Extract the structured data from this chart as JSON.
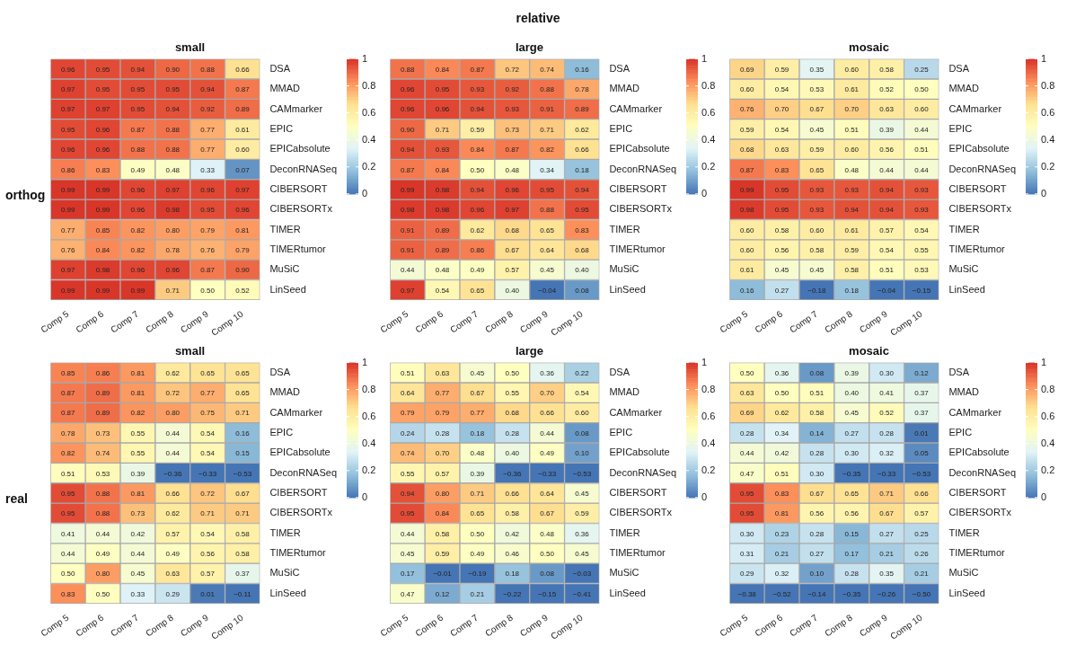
{
  "chart_data": [
    {
      "type": "heatmap",
      "title": "small",
      "annotations": [
        "relative",
        "orthog"
      ],
      "categories": [
        "Comp 5",
        "Comp 6",
        "Comp 7",
        "Comp 8",
        "Comp 9",
        "Comp 10"
      ],
      "y_categories": [
        "DSA",
        "MMAD",
        "CAMmarker",
        "EPIC",
        "EPICabsolute",
        "DeconRNASeq",
        "CIBERSORT",
        "CIBERSORTx",
        "TIMER",
        "TIMERtumor",
        "MuSiC",
        "LinSeed"
      ],
      "clim": [
        0,
        1
      ],
      "cticks": [
        0,
        0.2,
        0.4,
        0.6,
        0.8,
        1
      ],
      "cells": [
        [
          0.96,
          0.95,
          0.94,
          0.9,
          0.88,
          0.66
        ],
        [
          0.97,
          0.95,
          0.95,
          0.95,
          0.94,
          0.87
        ],
        [
          0.97,
          0.97,
          0.95,
          0.94,
          0.92,
          0.89
        ],
        [
          0.95,
          0.96,
          0.87,
          0.88,
          0.77,
          0.61
        ],
        [
          0.96,
          0.96,
          0.88,
          0.88,
          0.77,
          0.6
        ],
        [
          0.86,
          0.83,
          0.49,
          0.48,
          0.33,
          0.07
        ],
        [
          0.99,
          0.99,
          0.96,
          0.97,
          0.96,
          0.97
        ],
        [
          0.99,
          0.99,
          0.96,
          0.98,
          0.95,
          0.96
        ],
        [
          0.77,
          0.85,
          0.82,
          0.8,
          0.79,
          0.81
        ],
        [
          0.76,
          0.84,
          0.82,
          0.78,
          0.76,
          0.79
        ],
        [
          0.97,
          0.98,
          0.96,
          0.96,
          0.87,
          0.9
        ],
        [
          0.99,
          0.99,
          0.99,
          0.71,
          0.5,
          0.52
        ]
      ],
      "cell_labels": [
        [
          "0.96",
          "0.95",
          "0.94",
          "0.90",
          "0.88",
          "0.66"
        ],
        [
          "0.97",
          "0.95",
          "0.95",
          "0.95",
          "0.94",
          "0.87"
        ],
        [
          "0.97",
          "0.97",
          "0.95",
          "0.94",
          "0.92",
          "0.89"
        ],
        [
          "0.95",
          "0.96",
          "0.87",
          "0.88",
          "0.77",
          "0.61"
        ],
        [
          "0.96",
          "0.96",
          "0.88",
          "0.88",
          "0.77",
          "0.60"
        ],
        [
          "0.86",
          "0.83",
          "0.49",
          "0.48",
          "0.33",
          "0.07"
        ],
        [
          "0.99",
          "0.99",
          "0.96",
          "0.97",
          "0.96",
          "0.97"
        ],
        [
          "0.99",
          "0.99",
          "0.96",
          "0.98",
          "0.95",
          "0.96"
        ],
        [
          "0.77",
          "0.85",
          "0.82",
          "0.80",
          "0.79",
          "0.81"
        ],
        [
          "0.76",
          "0.84",
          "0.82",
          "0.78",
          "0.76",
          "0.79"
        ],
        [
          "0.97",
          "0.98",
          "0.96",
          "0.96",
          "0.87",
          "0.90"
        ],
        [
          "0.99",
          "0.99",
          "0.99",
          "0.71",
          "0.50",
          "0.52"
        ]
      ]
    },
    {
      "type": "heatmap",
      "title": "large",
      "categories": [
        "Comp 5",
        "Comp 6",
        "Comp 7",
        "Comp 8",
        "Comp 9",
        "Comp 10"
      ],
      "y_categories": [
        "DSA",
        "MMAD",
        "CAMmarker",
        "EPIC",
        "EPICabsolute",
        "DeconRNASeq",
        "CIBERSORT",
        "CIBERSORTx",
        "TIMER",
        "TIMERtumor",
        "MuSiC",
        "LinSeed"
      ],
      "clim": [
        0,
        1
      ],
      "cticks": [
        0,
        0.2,
        0.4,
        0.6,
        0.8,
        1
      ],
      "cells": [
        [
          0.88,
          0.84,
          0.87,
          0.72,
          0.74,
          0.16
        ],
        [
          0.96,
          0.95,
          0.93,
          0.92,
          0.88,
          0.78
        ],
        [
          0.96,
          0.96,
          0.94,
          0.93,
          0.91,
          0.89
        ],
        [
          0.9,
          0.71,
          0.59,
          0.73,
          0.71,
          0.62
        ],
        [
          0.94,
          0.93,
          0.84,
          0.87,
          0.82,
          0.66
        ],
        [
          0.87,
          0.84,
          0.5,
          0.48,
          0.34,
          0.18
        ],
        [
          0.99,
          0.98,
          0.94,
          0.96,
          0.95,
          0.94
        ],
        [
          0.98,
          0.98,
          0.96,
          0.97,
          0.88,
          0.95
        ],
        [
          0.91,
          0.89,
          0.62,
          0.68,
          0.65,
          0.83
        ],
        [
          0.91,
          0.89,
          0.86,
          0.67,
          0.64,
          0.68
        ],
        [
          0.44,
          0.48,
          0.49,
          0.57,
          0.45,
          0.4
        ],
        [
          0.97,
          0.54,
          0.65,
          0.4,
          -0.04,
          0.08
        ]
      ],
      "cell_labels": [
        [
          "0.88",
          "0.84",
          "0.87",
          "0.72",
          "0.74",
          "0.16"
        ],
        [
          "0.96",
          "0.95",
          "0.93",
          "0.92",
          "0.88",
          "0.78"
        ],
        [
          "0.96",
          "0.96",
          "0.94",
          "0.93",
          "0.91",
          "0.89"
        ],
        [
          "0.90",
          "0.71",
          "0.59",
          "0.73",
          "0.71",
          "0.62"
        ],
        [
          "0.94",
          "0.93",
          "0.84",
          "0.87",
          "0.82",
          "0.66"
        ],
        [
          "0.87",
          "0.84",
          "0.50",
          "0.48",
          "0.34",
          "0.18"
        ],
        [
          "0.99",
          "0.98",
          "0.94",
          "0.96",
          "0.95",
          "0.94"
        ],
        [
          "0.98",
          "0.98",
          "0.96",
          "0.97",
          "0.88",
          "0.95"
        ],
        [
          "0.91",
          "0.89",
          "0.62",
          "0.68",
          "0.65",
          "0.83"
        ],
        [
          "0.91",
          "0.89",
          "0.86",
          "0.67",
          "0.64",
          "0.68"
        ],
        [
          "0.44",
          "0.48",
          "0.49",
          "0.57",
          "0.45",
          "0.40"
        ],
        [
          "0.97",
          "0.54",
          "0.65",
          "0.40",
          "−0.04",
          "0.08"
        ]
      ]
    },
    {
      "type": "heatmap",
      "title": "mosaic",
      "categories": [
        "Comp 5",
        "Comp 6",
        "Comp 7",
        "Comp 8",
        "Comp 9",
        "Comp 10"
      ],
      "y_categories": [
        "DSA",
        "MMAD",
        "CAMmarker",
        "EPIC",
        "EPICabsolute",
        "DeconRNASeq",
        "CIBERSORT",
        "CIBERSORTx",
        "TIMER",
        "TIMERtumor",
        "MuSiC",
        "LinSeed"
      ],
      "clim": [
        0,
        1
      ],
      "cticks": [
        0,
        0.2,
        0.4,
        0.6,
        0.8,
        1
      ],
      "cells": [
        [
          0.69,
          0.59,
          0.35,
          0.6,
          0.58,
          0.25
        ],
        [
          0.6,
          0.54,
          0.53,
          0.61,
          0.52,
          0.5
        ],
        [
          0.76,
          0.7,
          0.67,
          0.7,
          0.63,
          0.6
        ],
        [
          0.59,
          0.54,
          0.45,
          0.51,
          0.39,
          0.44
        ],
        [
          0.68,
          0.63,
          0.59,
          0.6,
          0.56,
          0.51
        ],
        [
          0.87,
          0.83,
          0.65,
          0.48,
          0.44,
          0.44
        ],
        [
          0.99,
          0.95,
          0.93,
          0.93,
          0.94,
          0.93
        ],
        [
          0.98,
          0.95,
          0.93,
          0.94,
          0.94,
          0.93
        ],
        [
          0.6,
          0.58,
          0.6,
          0.61,
          0.57,
          0.54
        ],
        [
          0.6,
          0.56,
          0.58,
          0.59,
          0.54,
          0.55
        ],
        [
          0.61,
          0.45,
          0.45,
          0.58,
          0.51,
          0.53
        ],
        [
          0.16,
          0.27,
          -0.18,
          0.18,
          -0.04,
          -0.15
        ]
      ],
      "cell_labels": [
        [
          "0.69",
          "0.59",
          "0.35",
          "0.60",
          "0.58",
          "0.25"
        ],
        [
          "0.60",
          "0.54",
          "0.53",
          "0.61",
          "0.52",
          "0.50"
        ],
        [
          "0.76",
          "0.70",
          "0.67",
          "0.70",
          "0.63",
          "0.60"
        ],
        [
          "0.59",
          "0.54",
          "0.45",
          "0.51",
          "0.39",
          "0.44"
        ],
        [
          "0.68",
          "0.63",
          "0.59",
          "0.60",
          "0.56",
          "0.51"
        ],
        [
          "0.87",
          "0.83",
          "0.65",
          "0.48",
          "0.44",
          "0.44"
        ],
        [
          "0.99",
          "0.95",
          "0.93",
          "0.93",
          "0.94",
          "0.93"
        ],
        [
          "0.98",
          "0.95",
          "0.93",
          "0.94",
          "0.94",
          "0.93"
        ],
        [
          "0.60",
          "0.58",
          "0.60",
          "0.61",
          "0.57",
          "0.54"
        ],
        [
          "0.60",
          "0.56",
          "0.58",
          "0.59",
          "0.54",
          "0.55"
        ],
        [
          "0.61",
          "0.45",
          "0.45",
          "0.58",
          "0.51",
          "0.53"
        ],
        [
          "0.16",
          "0.27",
          "−0.18",
          "0.18",
          "−0.04",
          "−0.15"
        ]
      ]
    },
    {
      "type": "heatmap",
      "title": "small",
      "annotations": [
        "real"
      ],
      "categories": [
        "Comp 5",
        "Comp 6",
        "Comp 7",
        "Comp 8",
        "Comp 9",
        "Comp 10"
      ],
      "y_categories": [
        "DSA",
        "MMAD",
        "CAMmarker",
        "EPIC",
        "EPICabsolute",
        "DeconRNASeq",
        "CIBERSORT",
        "CIBERSORTx",
        "TIMER",
        "TIMERtumor",
        "MuSiC",
        "LinSeed"
      ],
      "clim": [
        0,
        1
      ],
      "cticks": [
        0,
        0.2,
        0.4,
        0.6,
        0.8,
        1
      ],
      "cells": [
        [
          0.85,
          0.86,
          0.81,
          0.62,
          0.65,
          0.65
        ],
        [
          0.87,
          0.89,
          0.81,
          0.72,
          0.77,
          0.65
        ],
        [
          0.87,
          0.89,
          0.82,
          0.8,
          0.75,
          0.71
        ],
        [
          0.78,
          0.73,
          0.55,
          0.44,
          0.54,
          0.16
        ],
        [
          0.82,
          0.74,
          0.55,
          0.44,
          0.54,
          0.15
        ],
        [
          0.51,
          0.53,
          0.39,
          -0.36,
          -0.33,
          -0.53
        ],
        [
          0.95,
          0.88,
          0.81,
          0.66,
          0.72,
          0.67
        ],
        [
          0.95,
          0.88,
          0.73,
          0.62,
          0.71,
          0.71
        ],
        [
          0.41,
          0.44,
          0.42,
          0.57,
          0.54,
          0.58
        ],
        [
          0.44,
          0.49,
          0.44,
          0.49,
          0.56,
          0.58
        ],
        [
          0.5,
          0.8,
          0.45,
          0.63,
          0.57,
          0.37
        ],
        [
          0.83,
          0.5,
          0.33,
          0.29,
          0.01,
          -0.11
        ]
      ],
      "cell_labels": [
        [
          "0.85",
          "0.86",
          "0.81",
          "0.62",
          "0.65",
          "0.65"
        ],
        [
          "0.87",
          "0.89",
          "0.81",
          "0.72",
          "0.77",
          "0.65"
        ],
        [
          "0.87",
          "0.89",
          "0.82",
          "0.80",
          "0.75",
          "0.71"
        ],
        [
          "0.78",
          "0.73",
          "0.55",
          "0.44",
          "0.54",
          "0.16"
        ],
        [
          "0.82",
          "0.74",
          "0.55",
          "0.44",
          "0.54",
          "0.15"
        ],
        [
          "0.51",
          "0.53",
          "0.39",
          "−0.36",
          "−0.33",
          "−0.53"
        ],
        [
          "0.95",
          "0.88",
          "0.81",
          "0.66",
          "0.72",
          "0.67"
        ],
        [
          "0.95",
          "0.88",
          "0.73",
          "0.62",
          "0.71",
          "0.71"
        ],
        [
          "0.41",
          "0.44",
          "0.42",
          "0.57",
          "0.54",
          "0.58"
        ],
        [
          "0.44",
          "0.49",
          "0.44",
          "0.49",
          "0.56",
          "0.58"
        ],
        [
          "0.50",
          "0.80",
          "0.45",
          "0.63",
          "0.57",
          "0.37"
        ],
        [
          "0.83",
          "0.50",
          "0.33",
          "0.29",
          "0.01",
          "−0.11"
        ]
      ]
    },
    {
      "type": "heatmap",
      "title": "large",
      "categories": [
        "Comp 5",
        "Comp 6",
        "Comp 7",
        "Comp 8",
        "Comp 9",
        "Comp 10"
      ],
      "y_categories": [
        "DSA",
        "MMAD",
        "CAMmarker",
        "EPIC",
        "EPICabsolute",
        "DeconRNASeq",
        "CIBERSORT",
        "CIBERSORTx",
        "TIMER",
        "TIMERtumor",
        "MuSiC",
        "LinSeed"
      ],
      "clim": [
        0,
        1
      ],
      "cticks": [
        0,
        0.2,
        0.4,
        0.6,
        0.8,
        1
      ],
      "cells": [
        [
          0.51,
          0.63,
          0.45,
          0.5,
          0.36,
          0.22
        ],
        [
          0.64,
          0.77,
          0.67,
          0.55,
          0.7,
          0.54
        ],
        [
          0.79,
          0.79,
          0.77,
          0.68,
          0.66,
          0.6
        ],
        [
          0.24,
          0.28,
          0.18,
          0.28,
          0.44,
          0.08
        ],
        [
          0.74,
          0.7,
          0.48,
          0.4,
          0.49,
          0.1
        ],
        [
          0.55,
          0.57,
          0.39,
          -0.36,
          -0.33,
          -0.53
        ],
        [
          0.94,
          0.8,
          0.71,
          0.66,
          0.64,
          0.45
        ],
        [
          0.95,
          0.84,
          0.65,
          0.58,
          0.67,
          0.59
        ],
        [
          0.44,
          0.58,
          0.5,
          0.42,
          0.48,
          0.36
        ],
        [
          0.45,
          0.59,
          0.49,
          0.46,
          0.5,
          0.45
        ],
        [
          0.17,
          -0.01,
          -0.19,
          0.18,
          0.08,
          -0.03
        ],
        [
          0.47,
          0.12,
          0.21,
          -0.22,
          -0.15,
          -0.41
        ]
      ],
      "cell_labels": [
        [
          "0.51",
          "0.63",
          "0.45",
          "0.50",
          "0.36",
          "0.22"
        ],
        [
          "0.64",
          "0.77",
          "0.67",
          "0.55",
          "0.70",
          "0.54"
        ],
        [
          "0.79",
          "0.79",
          "0.77",
          "0.68",
          "0.66",
          "0.60"
        ],
        [
          "0.24",
          "0.28",
          "0.18",
          "0.28",
          "0.44",
          "0.08"
        ],
        [
          "0.74",
          "0.70",
          "0.48",
          "0.40",
          "0.49",
          "0.10"
        ],
        [
          "0.55",
          "0.57",
          "0.39",
          "−0.36",
          "−0.33",
          "−0.53"
        ],
        [
          "0.94",
          "0.80",
          "0.71",
          "0.66",
          "0.64",
          "0.45"
        ],
        [
          "0.95",
          "0.84",
          "0.65",
          "0.58",
          "0.67",
          "0.59"
        ],
        [
          "0.44",
          "0.58",
          "0.50",
          "0.42",
          "0.48",
          "0.36"
        ],
        [
          "0.45",
          "0.59",
          "0.49",
          "0.46",
          "0.50",
          "0.45"
        ],
        [
          "0.17",
          "−0.01",
          "−0.19",
          "0.18",
          "0.08",
          "−0.03"
        ],
        [
          "0.47",
          "0.12",
          "0.21",
          "−0.22",
          "−0.15",
          "−0.41"
        ]
      ]
    },
    {
      "type": "heatmap",
      "title": "mosaic",
      "categories": [
        "Comp 5",
        "Comp 6",
        "Comp 7",
        "Comp 8",
        "Comp 9",
        "Comp 10"
      ],
      "y_categories": [
        "DSA",
        "MMAD",
        "CAMmarker",
        "EPIC",
        "EPICabsolute",
        "DeconRNASeq",
        "CIBERSORT",
        "CIBERSORTx",
        "TIMER",
        "TIMERtumor",
        "MuSiC",
        "LinSeed"
      ],
      "clim": [
        0,
        1
      ],
      "cticks": [
        0,
        0.2,
        0.4,
        0.6,
        0.8,
        1
      ],
      "cells": [
        [
          0.5,
          0.36,
          0.08,
          0.39,
          0.3,
          0.12
        ],
        [
          0.63,
          0.5,
          0.51,
          0.4,
          0.41,
          0.37
        ],
        [
          0.69,
          0.62,
          0.58,
          0.45,
          0.52,
          0.37
        ],
        [
          0.28,
          0.34,
          0.14,
          0.27,
          0.28,
          0.01
        ],
        [
          0.44,
          0.42,
          0.28,
          0.3,
          0.32,
          0.05
        ],
        [
          0.47,
          0.51,
          0.3,
          -0.35,
          -0.33,
          -0.53
        ],
        [
          0.95,
          0.83,
          0.67,
          0.65,
          0.71,
          0.66
        ],
        [
          0.95,
          0.81,
          0.56,
          0.56,
          0.67,
          0.57
        ],
        [
          0.3,
          0.23,
          0.28,
          0.15,
          0.27,
          0.25
        ],
        [
          0.31,
          0.21,
          0.27,
          0.17,
          0.21,
          0.26
        ],
        [
          0.29,
          0.32,
          0.1,
          0.28,
          0.35,
          0.21
        ],
        [
          -0.38,
          -0.52,
          -0.14,
          -0.35,
          -0.26,
          -0.5
        ]
      ],
      "cell_labels": [
        [
          "0.50",
          "0.36",
          "0.08",
          "0.39",
          "0.30",
          "0.12"
        ],
        [
          "0.63",
          "0.50",
          "0.51",
          "0.40",
          "0.41",
          "0.37"
        ],
        [
          "0.69",
          "0.62",
          "0.58",
          "0.45",
          "0.52",
          "0.37"
        ],
        [
          "0.28",
          "0.34",
          "0.14",
          "0.27",
          "0.28",
          "0.01"
        ],
        [
          "0.44",
          "0.42",
          "0.28",
          "0.30",
          "0.32",
          "0.05"
        ],
        [
          "0.47",
          "0.51",
          "0.30",
          "−0.35",
          "−0.33",
          "−0.53"
        ],
        [
          "0.95",
          "0.83",
          "0.67",
          "0.65",
          "0.71",
          "0.66"
        ],
        [
          "0.95",
          "0.81",
          "0.56",
          "0.56",
          "0.67",
          "0.57"
        ],
        [
          "0.30",
          "0.23",
          "0.28",
          "0.15",
          "0.27",
          "0.25"
        ],
        [
          "0.31",
          "0.21",
          "0.27",
          "0.17",
          "0.21",
          "0.26"
        ],
        [
          "0.29",
          "0.32",
          "0.10",
          "0.28",
          "0.35",
          "0.21"
        ],
        [
          "−0.38",
          "−0.52",
          "−0.14",
          "−0.35",
          "−0.26",
          "−0.50"
        ]
      ]
    }
  ]
}
